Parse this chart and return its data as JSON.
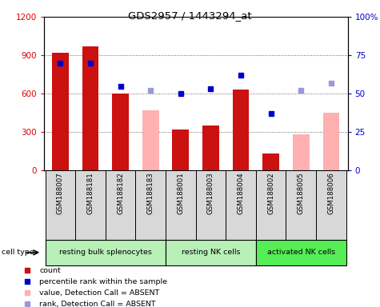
{
  "title": "GDS2957 / 1443294_at",
  "samples": [
    "GSM188007",
    "GSM188181",
    "GSM188182",
    "GSM188183",
    "GSM188001",
    "GSM188003",
    "GSM188004",
    "GSM188002",
    "GSM188005",
    "GSM188006"
  ],
  "count_values": [
    920,
    970,
    600,
    null,
    320,
    350,
    630,
    130,
    null,
    null
  ],
  "count_absent": [
    null,
    null,
    null,
    470,
    null,
    null,
    null,
    null,
    280,
    450
  ],
  "rank_values": [
    70,
    70,
    55,
    null,
    50,
    53,
    62,
    37,
    null,
    null
  ],
  "rank_absent": [
    null,
    null,
    null,
    52,
    null,
    null,
    null,
    null,
    52,
    57
  ],
  "group_positions": [
    [
      0,
      3,
      "resting bulk splenocytes",
      "#b8f0b8"
    ],
    [
      4,
      6,
      "resting NK cells",
      "#b8f0b8"
    ],
    [
      7,
      9,
      "activated NK cells",
      "#55ee55"
    ]
  ],
  "ylim_left": [
    0,
    1200
  ],
  "ylim_right": [
    0,
    100
  ],
  "yticks_left": [
    0,
    300,
    600,
    900,
    1200
  ],
  "yticks_right": [
    0,
    25,
    50,
    75,
    100
  ],
  "ytick_labels_right": [
    "0",
    "25",
    "50",
    "75",
    "100%"
  ],
  "bar_width": 0.55,
  "bar_color_red": "#cc1111",
  "bar_color_pink": "#ffb0b0",
  "dot_color_blue": "#0000cc",
  "dot_color_lightblue": "#9999dd",
  "bg_color_sample": "#d8d8d8",
  "plot_bg": "#ffffff",
  "grid_color": "#444444",
  "left_tick_color": "#dd0000",
  "right_tick_color": "#0000cc",
  "legend_items": [
    [
      "#cc1111",
      "square",
      "count"
    ],
    [
      "#0000cc",
      "square",
      "percentile rank within the sample"
    ],
    [
      "#ffb0b0",
      "square",
      "value, Detection Call = ABSENT"
    ],
    [
      "#9999dd",
      "square",
      "rank, Detection Call = ABSENT"
    ]
  ]
}
